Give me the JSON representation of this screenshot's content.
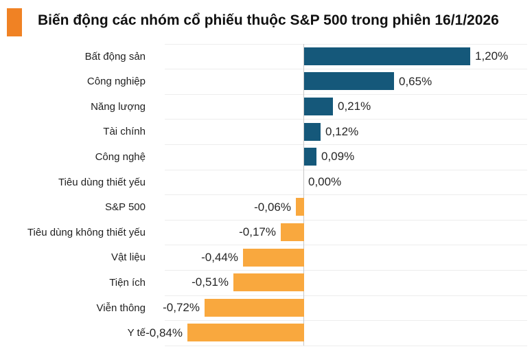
{
  "header": {
    "title": "Biến động các nhóm cổ phiếu thuộc S&P 500 trong phiên 16/1/2026"
  },
  "chart_data": {
    "type": "bar",
    "orientation": "horizontal",
    "title": "Biến động các nhóm cổ phiếu thuộc S&P 500 trong phiên 16/1/2026",
    "categories": [
      "Bất động sản",
      "Công nghiệp",
      "Năng lượng",
      "Tài chính",
      "Công nghệ",
      "Tiêu dùng thiết yếu",
      "S&P 500",
      "Tiêu dùng không thiết yếu",
      "Vật liệu",
      "Tiện ích",
      "Viễn thông",
      "Y tế"
    ],
    "values": [
      1.2,
      0.65,
      0.21,
      0.12,
      0.09,
      0.0,
      -0.06,
      -0.17,
      -0.44,
      -0.51,
      -0.72,
      -0.84
    ],
    "display_values": [
      "1,20%",
      "0,65%",
      "0,21%",
      "0,12%",
      "0,09%",
      "0,00%",
      "-0,06%",
      "-0,17%",
      "-0,44%",
      "-0,51%",
      "-0,72%",
      "-0,84%"
    ],
    "unit": "%",
    "xlim": [
      -1.0,
      1.62
    ],
    "grid": "horizontal-row-separators",
    "legend": "none",
    "zero_axis_line": true,
    "colors": {
      "positive_bar": "#15587A",
      "negative_bar": "#F9A83E",
      "accent_square": "#F08224",
      "gridline": "#ededed",
      "zero_line": "#c8c8c8",
      "category_text": "#1f1f1f",
      "value_text": "#262626",
      "title_text": "#111111"
    }
  }
}
